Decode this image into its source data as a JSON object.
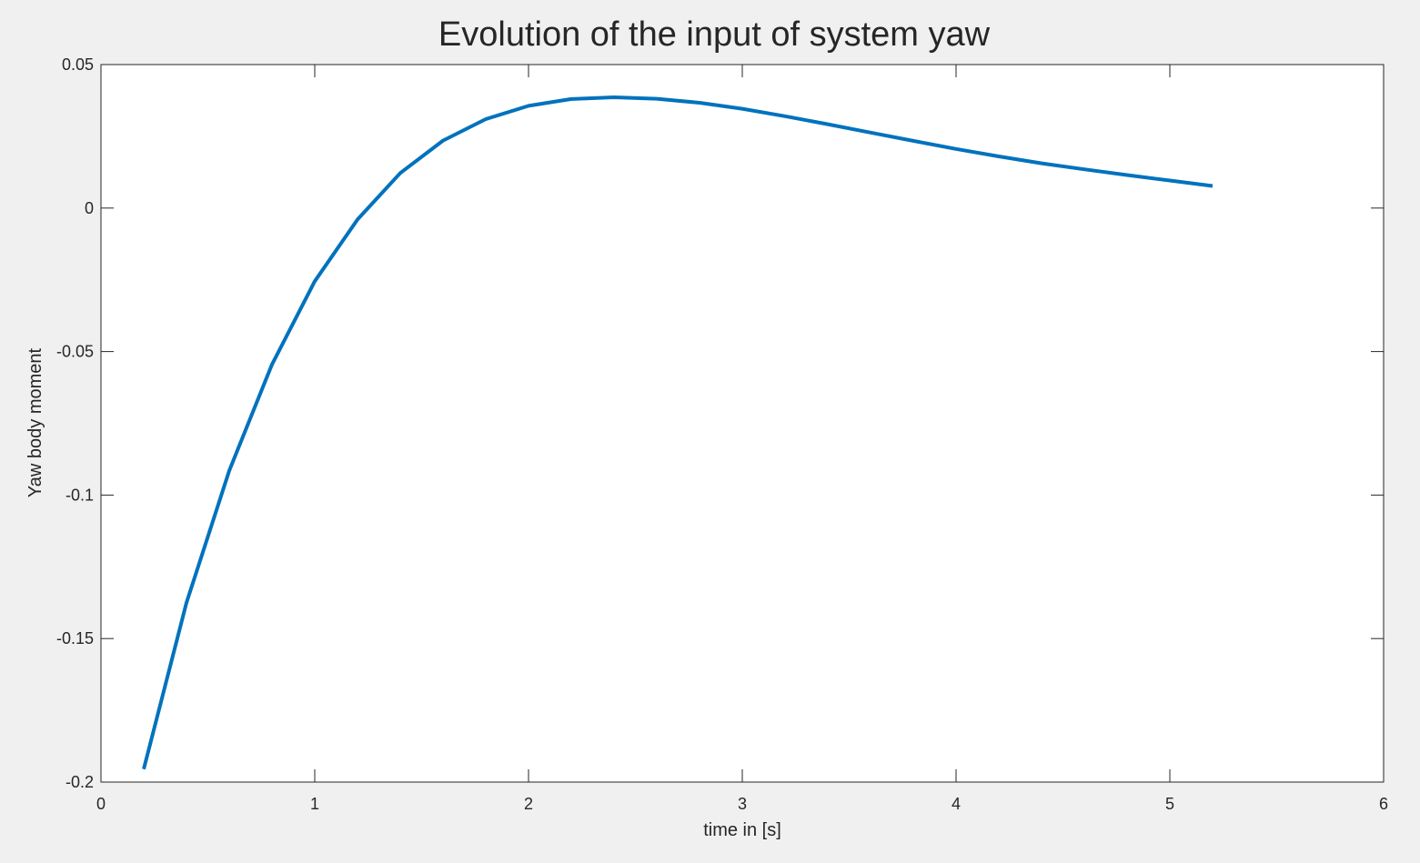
{
  "chart_data": {
    "type": "line",
    "title": "Evolution of the input of system yaw",
    "xlabel": "time in [s]",
    "ylabel": "Yaw body moment",
    "xlim": [
      0,
      6
    ],
    "ylim": [
      -0.2,
      0.05
    ],
    "xticks": [
      0,
      1,
      2,
      3,
      4,
      5,
      6
    ],
    "xtick_labels": [
      "0",
      "1",
      "2",
      "3",
      "4",
      "5",
      "6"
    ],
    "yticks": [
      -0.2,
      -0.15,
      -0.1,
      -0.05,
      0,
      0.05
    ],
    "ytick_labels": [
      "-0.2",
      "-0.15",
      "-0.1",
      "-0.05",
      "0",
      "0.05"
    ],
    "grid": false,
    "series": [
      {
        "color": "#0072bd",
        "x": [
          0.2,
          0.4,
          0.6,
          0.8,
          1.0,
          1.2,
          1.4,
          1.6,
          1.8,
          2.0,
          2.2,
          2.4,
          2.6,
          2.8,
          3.0,
          3.2,
          3.4,
          3.6,
          3.8,
          4.0,
          4.2,
          4.4,
          4.6,
          4.8,
          5.0,
          5.2
        ],
        "y": [
          -0.1955,
          -0.1375,
          -0.0915,
          -0.0545,
          -0.0255,
          -0.004,
          0.0122,
          0.0235,
          0.031,
          0.0356,
          0.038,
          0.0386,
          0.0381,
          0.0367,
          0.0346,
          0.032,
          0.0292,
          0.0263,
          0.0234,
          0.0206,
          0.018,
          0.0156,
          0.0135,
          0.0115,
          0.0096,
          0.0077
        ]
      }
    ]
  }
}
